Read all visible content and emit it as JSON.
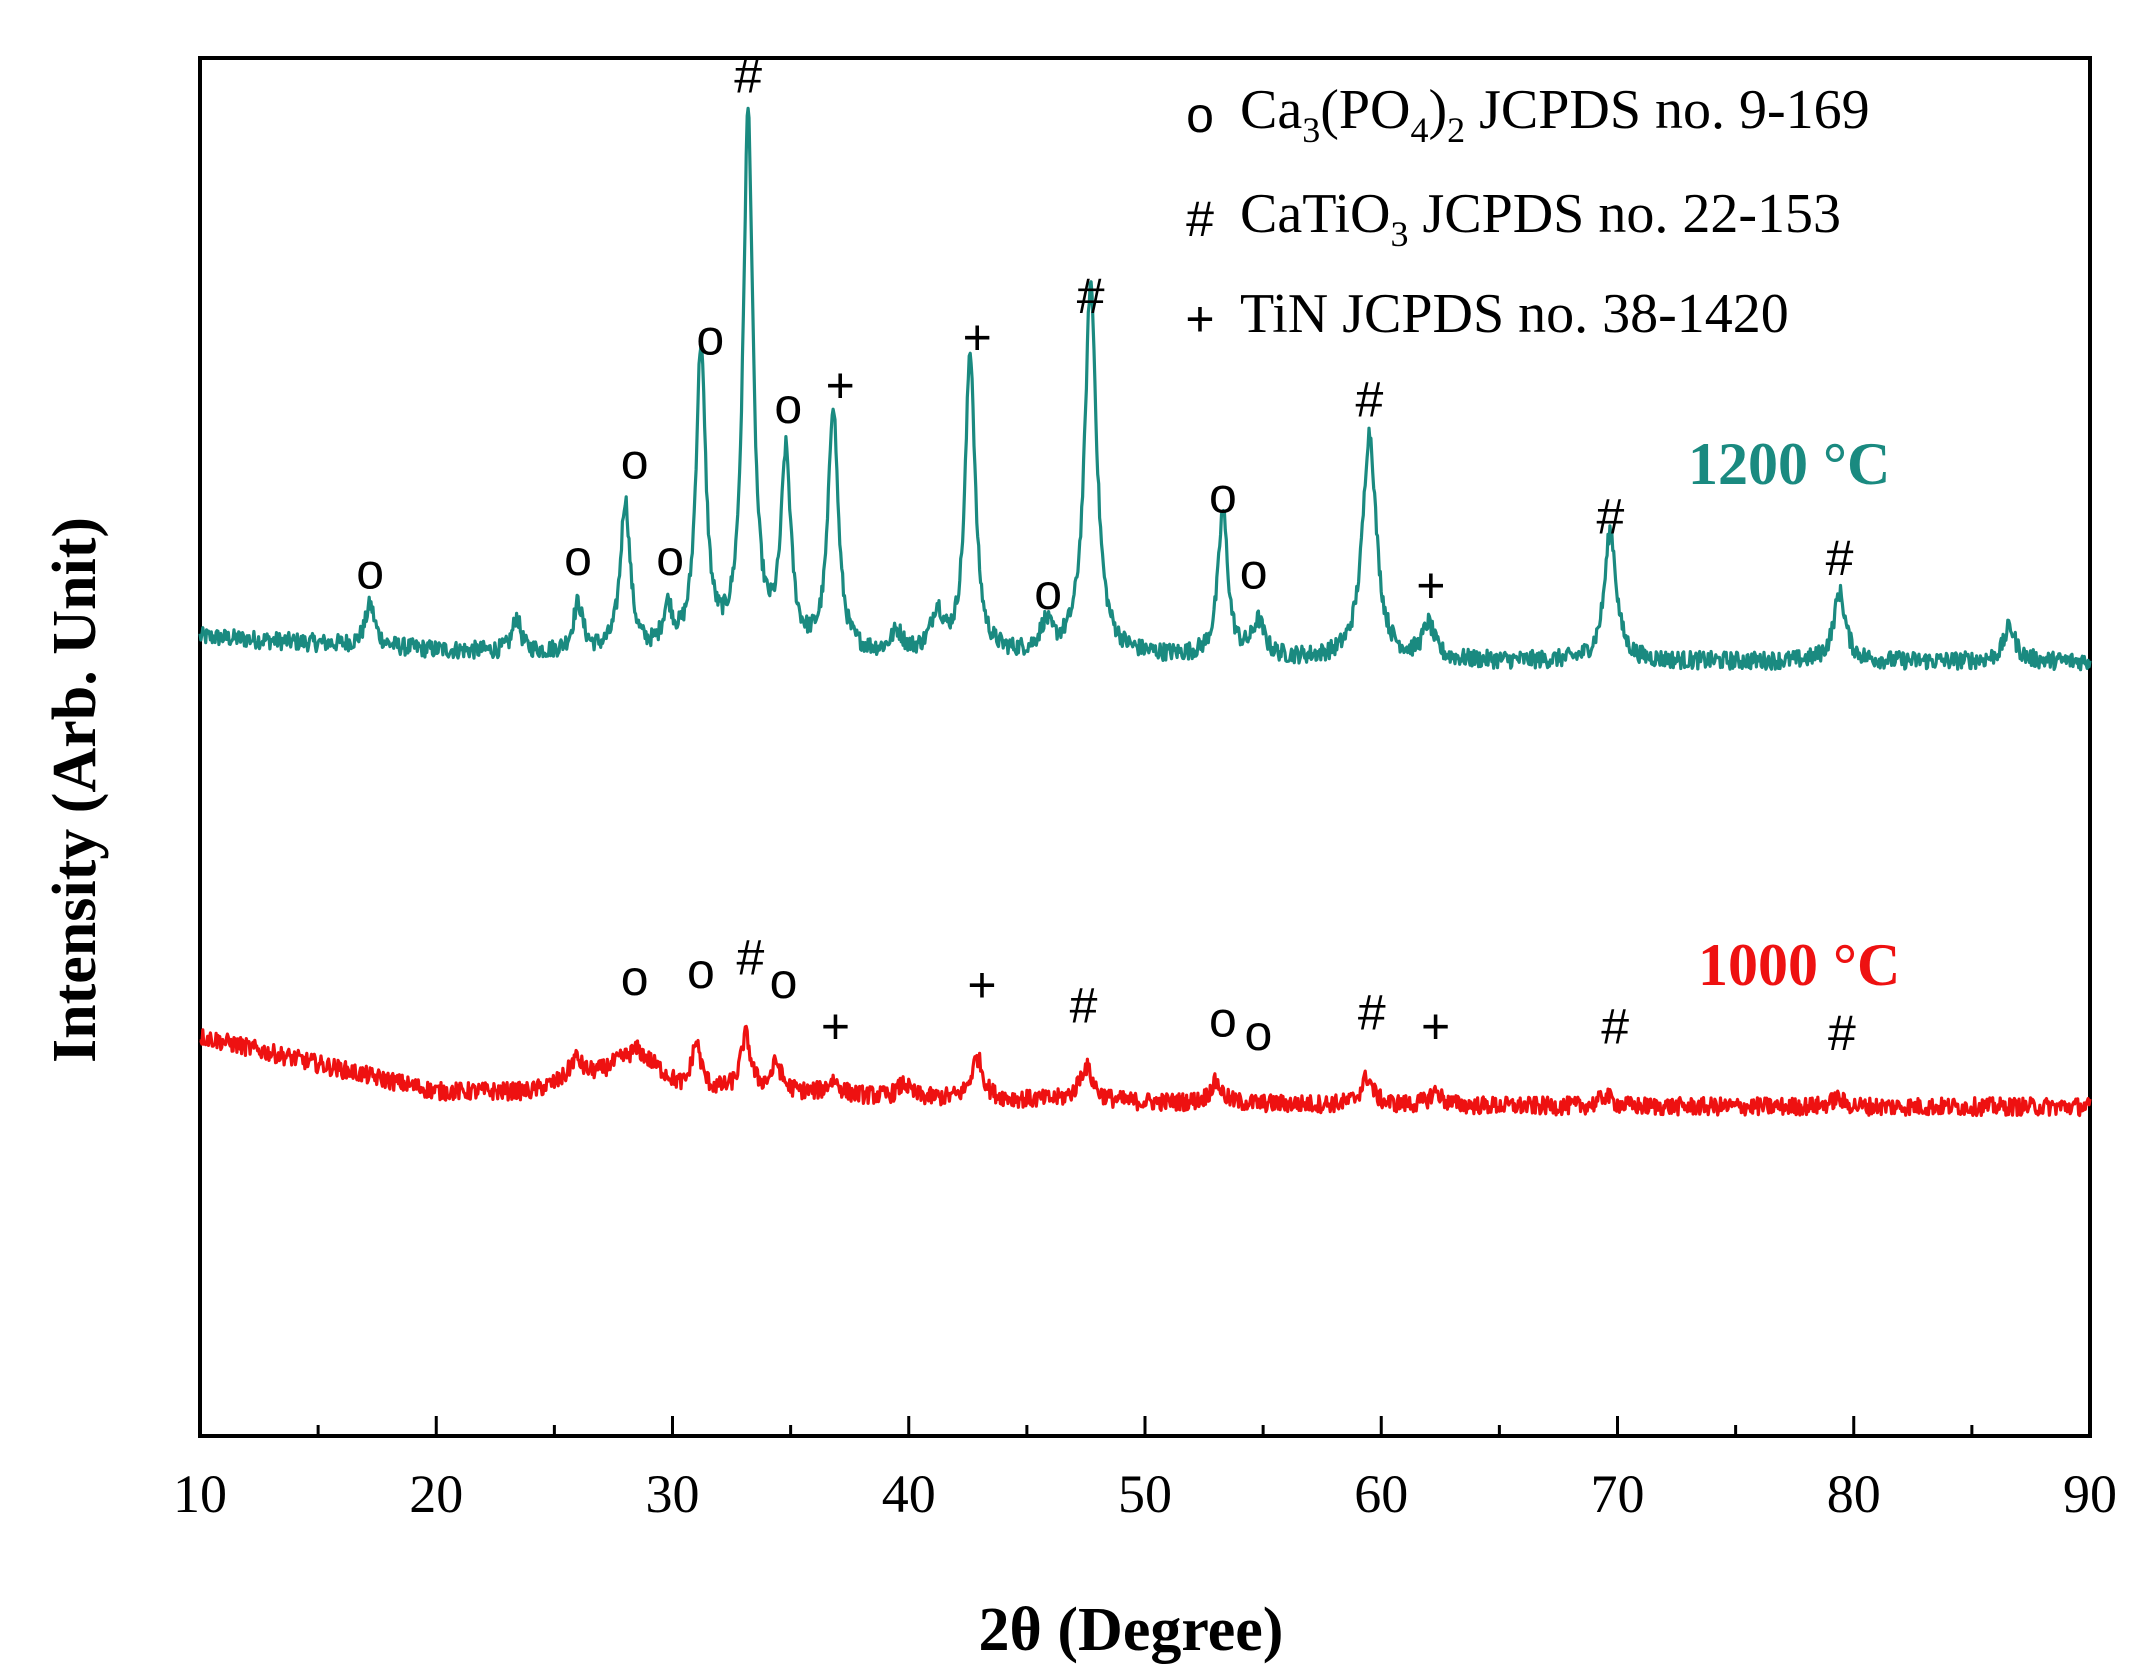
{
  "chart_data": {
    "type": "line",
    "xlabel": "2θ (Degree)",
    "ylabel": "Intensity (Arb. Unit)",
    "xlim": [
      10,
      90
    ],
    "xticks": [
      "10",
      "20",
      "30",
      "40",
      "50",
      "60",
      "70",
      "80",
      "90"
    ],
    "ylim": [
      0,
      100
    ],
    "legend": [
      {
        "symbol": "o",
        "text": "Ca₃(PO₄)₂ JCPDS no. 9-169"
      },
      {
        "symbol": "#",
        "text": "CaTiO₃ JCPDS no. 22-153"
      },
      {
        "symbol": "+",
        "text": "TiN JCPDS no. 38-1420"
      }
    ],
    "series": [
      {
        "name": "1200 °C",
        "label": "1200 °C",
        "color": "#1a8a80",
        "baseline": [
          [
            10,
            58
          ],
          [
            20,
            57
          ],
          [
            30,
            56.5
          ],
          [
            40,
            56.5
          ],
          [
            50,
            56.5
          ],
          [
            60,
            56.2
          ],
          [
            70,
            56.2
          ],
          [
            80,
            56.2
          ],
          [
            90,
            56.2
          ]
        ],
        "peaks": [
          {
            "x": 17.2,
            "h": 3,
            "w": 0.25
          },
          {
            "x": 23.4,
            "h": 2.5,
            "w": 0.2
          },
          {
            "x": 26.0,
            "h": 3.5,
            "w": 0.25
          },
          {
            "x": 28.0,
            "h": 11,
            "w": 0.25
          },
          {
            "x": 29.8,
            "h": 3,
            "w": 0.25
          },
          {
            "x": 31.2,
            "h": 22,
            "w": 0.25
          },
          {
            "x": 33.2,
            "h": 39,
            "w": 0.25
          },
          {
            "x": 34.8,
            "h": 14,
            "w": 0.25
          },
          {
            "x": 36.8,
            "h": 18,
            "w": 0.25
          },
          {
            "x": 39.5,
            "h": 1.5,
            "w": 0.3
          },
          {
            "x": 41.2,
            "h": 3,
            "w": 0.3
          },
          {
            "x": 42.6,
            "h": 22,
            "w": 0.25
          },
          {
            "x": 45.8,
            "h": 2,
            "w": 0.3
          },
          {
            "x": 47.7,
            "h": 27,
            "w": 0.3
          },
          {
            "x": 53.3,
            "h": 10.5,
            "w": 0.25
          },
          {
            "x": 54.8,
            "h": 2.5,
            "w": 0.3
          },
          {
            "x": 59.5,
            "h": 16.5,
            "w": 0.35
          },
          {
            "x": 62.0,
            "h": 2.5,
            "w": 0.3
          },
          {
            "x": 69.7,
            "h": 9.5,
            "w": 0.3
          },
          {
            "x": 79.4,
            "h": 5,
            "w": 0.3
          },
          {
            "x": 86.6,
            "h": 2.5,
            "w": 0.3
          }
        ],
        "markers": [
          {
            "x": 17.2,
            "y": 61.5,
            "symbol": "o"
          },
          {
            "x": 26.0,
            "y": 62.5,
            "symbol": "o"
          },
          {
            "x": 28.4,
            "y": 69.5,
            "symbol": "o"
          },
          {
            "x": 29.9,
            "y": 62.5,
            "symbol": "o"
          },
          {
            "x": 31.6,
            "y": 78.5,
            "symbol": "o"
          },
          {
            "x": 33.2,
            "y": 97.5,
            "symbol": "#"
          },
          {
            "x": 34.9,
            "y": 73.5,
            "symbol": "o"
          },
          {
            "x": 37.1,
            "y": 75.0,
            "symbol": "+"
          },
          {
            "x": 42.9,
            "y": 78.5,
            "symbol": "+"
          },
          {
            "x": 47.7,
            "y": 81.5,
            "symbol": "#"
          },
          {
            "x": 45.9,
            "y": 60.0,
            "symbol": "o"
          },
          {
            "x": 53.3,
            "y": 67.0,
            "symbol": "o"
          },
          {
            "x": 54.6,
            "y": 61.5,
            "symbol": "o"
          },
          {
            "x": 59.5,
            "y": 74.0,
            "symbol": "#"
          },
          {
            "x": 62.1,
            "y": 60.5,
            "symbol": "+"
          },
          {
            "x": 69.7,
            "y": 65.5,
            "symbol": "#"
          },
          {
            "x": 79.4,
            "y": 62.5,
            "symbol": "#"
          }
        ]
      },
      {
        "name": "1000 °C",
        "label": "1000 °C",
        "color": "#ee1111",
        "baseline": [
          [
            10,
            29
          ],
          [
            15,
            27
          ],
          [
            20,
            25
          ],
          [
            24,
            25
          ],
          [
            27,
            26.5
          ],
          [
            28.5,
            28
          ],
          [
            30.5,
            25
          ],
          [
            34,
            25
          ],
          [
            40,
            24.5
          ],
          [
            50,
            24.2
          ],
          [
            60,
            24.0
          ],
          [
            70,
            23.9
          ],
          [
            80,
            23.9
          ],
          [
            90,
            23.9
          ]
        ],
        "peaks": [
          {
            "x": 25.9,
            "h": 1.5,
            "w": 0.3
          },
          {
            "x": 31.0,
            "h": 3.5,
            "w": 0.25
          },
          {
            "x": 33.1,
            "h": 4,
            "w": 0.25
          },
          {
            "x": 34.4,
            "h": 2,
            "w": 0.25
          },
          {
            "x": 36.8,
            "h": 1,
            "w": 0.3
          },
          {
            "x": 39.8,
            "h": 1,
            "w": 0.3
          },
          {
            "x": 42.9,
            "h": 3,
            "w": 0.3
          },
          {
            "x": 47.5,
            "h": 2.5,
            "w": 0.35
          },
          {
            "x": 53.0,
            "h": 1.5,
            "w": 0.3
          },
          {
            "x": 59.4,
            "h": 2,
            "w": 0.3
          },
          {
            "x": 62.3,
            "h": 1,
            "w": 0.3
          },
          {
            "x": 69.5,
            "h": 0.8,
            "w": 0.3
          },
          {
            "x": 79.3,
            "h": 0.6,
            "w": 0.3
          }
        ],
        "markers": [
          {
            "x": 28.4,
            "y": 32.0,
            "symbol": "o"
          },
          {
            "x": 31.2,
            "y": 32.5,
            "symbol": "o"
          },
          {
            "x": 33.3,
            "y": 33.5,
            "symbol": "#"
          },
          {
            "x": 34.7,
            "y": 31.8,
            "symbol": "o"
          },
          {
            "x": 36.9,
            "y": 28.5,
            "symbol": "+"
          },
          {
            "x": 43.1,
            "y": 31.5,
            "symbol": "+"
          },
          {
            "x": 47.4,
            "y": 30.0,
            "symbol": "#"
          },
          {
            "x": 53.3,
            "y": 29.0,
            "symbol": "o"
          },
          {
            "x": 54.8,
            "y": 28.0,
            "symbol": "o"
          },
          {
            "x": 59.6,
            "y": 29.5,
            "symbol": "#"
          },
          {
            "x": 62.3,
            "y": 28.5,
            "symbol": "+"
          },
          {
            "x": 69.9,
            "y": 28.5,
            "symbol": "#"
          },
          {
            "x": 79.5,
            "y": 28.0,
            "symbol": "#"
          }
        ]
      }
    ]
  }
}
